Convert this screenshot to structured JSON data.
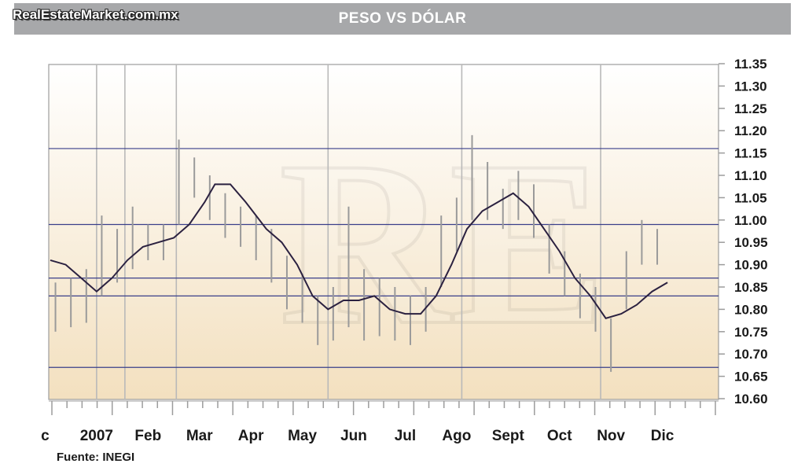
{
  "header": {
    "title": "PESO VS DÓLAR",
    "site": "RealEstateMarket.com.mx"
  },
  "footer": {
    "source": "Fuente: INEGI"
  },
  "chart_data": {
    "type": "line",
    "title": "PESO VS DÓLAR",
    "xlabel": "",
    "ylabel": "",
    "ylim": [
      10.6,
      11.35
    ],
    "y_ticks": [
      "11.35",
      "11.30",
      "11.25",
      "11.20",
      "11.15",
      "11.10",
      "11.05",
      "11.00",
      "10.95",
      "10.90",
      "10.85",
      "10.80",
      "10.75",
      "10.70",
      "10.65",
      "10.60"
    ],
    "x_labels": [
      "c",
      "2007",
      "Feb",
      "Mar",
      "Apr",
      "May",
      "Jun",
      "Jul",
      "Ago",
      "Sept",
      "Oct",
      "Nov",
      "Dic"
    ],
    "x_range": [
      -0.9,
      12.0
    ],
    "y_axis_position": "right",
    "horizontal_levels": [
      11.16,
      10.99,
      10.87,
      10.83,
      10.67
    ],
    "month_dividers": [
      0,
      0.55,
      1.55,
      4.5,
      7.1,
      9.8
    ],
    "series": [
      {
        "name": "",
        "kind": "moving-average",
        "x": [
          -0.9,
          -0.6,
          -0.3,
          0.0,
          0.3,
          0.6,
          0.9,
          1.2,
          1.5,
          1.8,
          2.1,
          2.3,
          2.6,
          2.9,
          3.1,
          3.3,
          3.6,
          3.9,
          4.2,
          4.5,
          4.8,
          5.1,
          5.4,
          5.7,
          6.0,
          6.3,
          6.6,
          6.9,
          7.2,
          7.5,
          7.8,
          8.1,
          8.4,
          8.7,
          9.0,
          9.3,
          9.6,
          9.9,
          10.2,
          10.5,
          10.8,
          11.1
        ],
        "y": [
          10.91,
          10.9,
          10.87,
          10.84,
          10.87,
          10.91,
          10.94,
          10.95,
          10.96,
          10.99,
          11.04,
          11.08,
          11.08,
          11.04,
          11.01,
          10.98,
          10.95,
          10.9,
          10.83,
          10.8,
          10.82,
          10.82,
          10.83,
          10.8,
          10.79,
          10.79,
          10.83,
          10.9,
          10.98,
          11.02,
          11.04,
          11.06,
          11.03,
          10.98,
          10.93,
          10.87,
          10.83,
          10.78,
          10.79,
          10.81,
          10.84,
          10.86
        ]
      },
      {
        "name": "",
        "kind": "daily-range",
        "x": [
          -0.8,
          -0.5,
          -0.2,
          0.1,
          0.4,
          0.7,
          1.0,
          1.3,
          1.6,
          1.9,
          2.2,
          2.5,
          2.8,
          3.1,
          3.4,
          3.7,
          4.0,
          4.3,
          4.6,
          4.9,
          5.2,
          5.5,
          5.8,
          6.1,
          6.4,
          6.7,
          7.0,
          7.3,
          7.6,
          7.9,
          8.2,
          8.5,
          8.8,
          9.1,
          9.4,
          9.7,
          10.0,
          10.3,
          10.6,
          10.9
        ],
        "high": [
          10.86,
          10.87,
          10.89,
          11.01,
          10.98,
          11.03,
          10.99,
          10.99,
          11.18,
          11.14,
          11.1,
          11.06,
          11.03,
          11.01,
          10.98,
          10.92,
          10.88,
          10.83,
          10.85,
          11.03,
          10.89,
          10.87,
          10.85,
          10.83,
          10.85,
          11.01,
          11.05,
          11.19,
          11.13,
          11.07,
          11.11,
          11.08,
          10.99,
          10.93,
          10.88,
          10.85,
          10.78,
          10.93,
          11.0,
          10.98
        ],
        "low": [
          10.75,
          10.76,
          10.77,
          10.83,
          10.86,
          10.89,
          10.91,
          10.91,
          10.99,
          11.05,
          11.0,
          10.96,
          10.94,
          10.91,
          10.86,
          10.8,
          10.77,
          10.72,
          10.73,
          10.76,
          10.73,
          10.74,
          10.73,
          10.72,
          10.75,
          10.85,
          10.93,
          11.0,
          11.0,
          10.98,
          11.0,
          10.96,
          10.88,
          10.83,
          10.78,
          10.75,
          10.66,
          10.8,
          10.9,
          10.9
        ]
      }
    ]
  }
}
